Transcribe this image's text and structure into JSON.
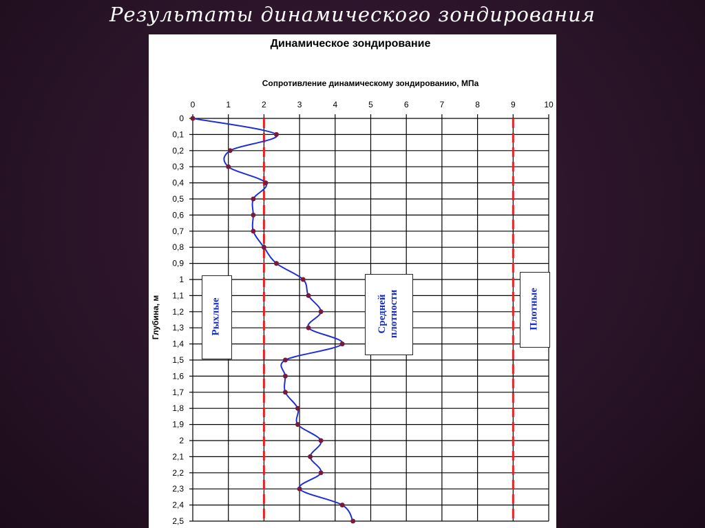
{
  "slide": {
    "title": "Результаты динамического зондирования"
  },
  "chart_data": {
    "type": "line",
    "title": "Динамическое зондирование",
    "xlabel": "Сопротивление динамическому зондированию, МПа",
    "ylabel": "Глубина, м",
    "x_ticks": [
      "0",
      "1",
      "2",
      "3",
      "4",
      "5",
      "6",
      "7",
      "8",
      "9",
      "10"
    ],
    "xlim": [
      0,
      10
    ],
    "y_ticks": [
      "0",
      "0,1",
      "0,2",
      "0,3",
      "0,4",
      "0,5",
      "0,6",
      "0,7",
      "0,8",
      "0,9",
      "1",
      "1,1",
      "1,2",
      "1,3",
      "1,4",
      "1,5",
      "1,6",
      "1,7",
      "1,8",
      "1,9",
      "2",
      "2,1",
      "2,2",
      "2,3",
      "2,4",
      "2,5"
    ],
    "ylim": [
      0,
      2.5
    ],
    "y_inverted": true,
    "grid": true,
    "series": [
      {
        "color": "#1f2fd6",
        "marker_color": "#7a1a3a",
        "points": [
          {
            "x": 0.0,
            "y": 0.0
          },
          {
            "x": 2.35,
            "y": 0.1
          },
          {
            "x": 1.05,
            "y": 0.2
          },
          {
            "x": 1.0,
            "y": 0.3
          },
          {
            "x": 2.05,
            "y": 0.4
          },
          {
            "x": 1.7,
            "y": 0.5
          },
          {
            "x": 1.7,
            "y": 0.6
          },
          {
            "x": 1.7,
            "y": 0.7
          },
          {
            "x": 2.0,
            "y": 0.8
          },
          {
            "x": 2.35,
            "y": 0.9
          },
          {
            "x": 3.1,
            "y": 1.0
          },
          {
            "x": 3.25,
            "y": 1.1
          },
          {
            "x": 3.6,
            "y": 1.2
          },
          {
            "x": 3.25,
            "y": 1.3
          },
          {
            "x": 4.2,
            "y": 1.4
          },
          {
            "x": 2.6,
            "y": 1.5
          },
          {
            "x": 2.6,
            "y": 1.6
          },
          {
            "x": 2.6,
            "y": 1.7
          },
          {
            "x": 2.95,
            "y": 1.8
          },
          {
            "x": 2.95,
            "y": 1.9
          },
          {
            "x": 3.6,
            "y": 2.0
          },
          {
            "x": 3.3,
            "y": 2.1
          },
          {
            "x": 3.6,
            "y": 2.2
          },
          {
            "x": 3.0,
            "y": 2.3
          },
          {
            "x": 4.2,
            "y": 2.4
          },
          {
            "x": 4.5,
            "y": 2.5
          }
        ]
      }
    ],
    "thresholds": [
      {
        "x": 2,
        "color": "#e32222",
        "style": "dashed"
      },
      {
        "x": 9,
        "color": "#e32222",
        "style": "dashed"
      }
    ],
    "zones": [
      {
        "label": "Рыхлые",
        "color": "#1a2fbf"
      },
      {
        "label": "Средней плотности",
        "color": "#1a2fbf"
      },
      {
        "label": "Плотные",
        "color": "#1a2fbf"
      }
    ]
  }
}
